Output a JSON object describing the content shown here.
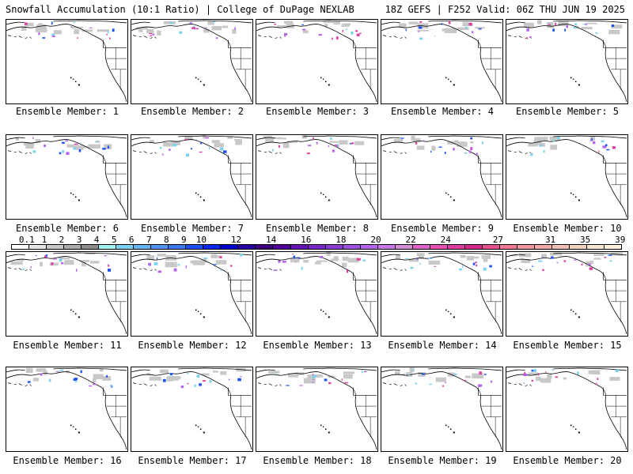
{
  "header": {
    "title_left": "Snowfall Accumulation (10:1 Ratio) | College of DuPage NEXLAB",
    "title_right": "18Z GEFS | F252 Valid: 06Z THU JUN 19 2025"
  },
  "panels": [
    {
      "label": "Ensemble Member: 1"
    },
    {
      "label": "Ensemble Member: 2"
    },
    {
      "label": "Ensemble Member: 3"
    },
    {
      "label": "Ensemble Member: 4"
    },
    {
      "label": "Ensemble Member: 5"
    },
    {
      "label": "Ensemble Member: 6"
    },
    {
      "label": "Ensemble Member: 7"
    },
    {
      "label": "Ensemble Member: 8"
    },
    {
      "label": "Ensemble Member: 9"
    },
    {
      "label": "Ensemble Member: 10"
    },
    {
      "label": "Ensemble Member: 11"
    },
    {
      "label": "Ensemble Member: 12"
    },
    {
      "label": "Ensemble Member: 13"
    },
    {
      "label": "Ensemble Member: 14"
    },
    {
      "label": "Ensemble Member: 15"
    },
    {
      "label": "Ensemble Member: 16"
    },
    {
      "label": "Ensemble Member: 17"
    },
    {
      "label": "Ensemble Member: 18"
    },
    {
      "label": "Ensemble Member: 19"
    },
    {
      "label": "Ensemble Member: 20"
    }
  ],
  "colorbar": {
    "labels": [
      "0.1",
      "1",
      "2",
      "3",
      "4",
      "5",
      "6",
      "7",
      "8",
      "9",
      "10",
      "12",
      "14",
      "16",
      "18",
      "20",
      "22",
      "24",
      "27",
      "31",
      "35",
      "39"
    ],
    "colors": [
      "#ffffff",
      "#e6e6e6",
      "#c8c8c8",
      "#aaaaaa",
      "#8c8c8c",
      "#a0f0f0",
      "#78d2f0",
      "#64b4f0",
      "#5096f0",
      "#3c78f0",
      "#1e50f0",
      "#0a28e6",
      "#0000c8",
      "#2800a0",
      "#3c0078",
      "#500096",
      "#6414b4",
      "#7828c8",
      "#8c3cd2",
      "#a050dc",
      "#b464e6",
      "#c878e6",
      "#d28cd2",
      "#dc64c8",
      "#e650b4",
      "#dc3ca0",
      "#d2288c",
      "#e6508c",
      "#f07896",
      "#f096a0",
      "#f0aaaa",
      "#f0beb4",
      "#f0d2be",
      "#f5e6d2",
      "#fff0dc"
    ]
  },
  "map_colors": {
    "land_gray": "#c8c8c8",
    "snow_cyan": "#78d2f0",
    "snow_blue": "#1e50f0",
    "snow_purple": "#b464e6",
    "snow_magenta": "#dc3ca0"
  }
}
